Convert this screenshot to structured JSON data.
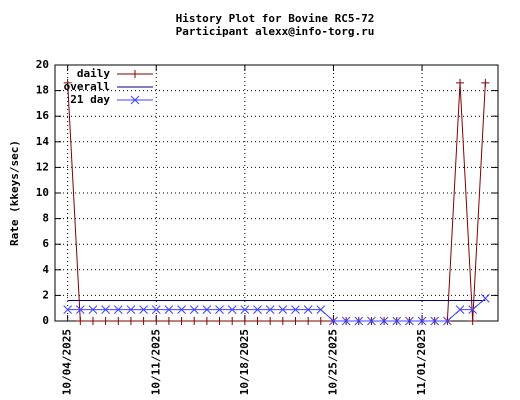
{
  "chart_data": {
    "type": "line",
    "title": "History Plot for Bovine RC5-72",
    "subtitle": "Participant alexx@info-torg.ru",
    "y_label": "Rate (kkeys/sec)",
    "x": [
      "10/04/2025",
      "10/05/2025",
      "10/06/2025",
      "10/07/2025",
      "10/08/2025",
      "10/09/2025",
      "10/10/2025",
      "10/11/2025",
      "10/12/2025",
      "10/13/2025",
      "10/14/2025",
      "10/15/2025",
      "10/16/2025",
      "10/17/2025",
      "10/18/2025",
      "10/19/2025",
      "10/20/2025",
      "10/21/2025",
      "10/22/2025",
      "10/23/2025",
      "10/24/2025",
      "10/25/2025",
      "10/26/2025",
      "10/27/2025",
      "10/28/2025",
      "10/29/2025",
      "10/30/2025",
      "10/31/2025",
      "11/01/2025",
      "11/02/2025",
      "11/03/2025",
      "11/04/2025",
      "11/05/2025",
      "11/06/2025"
    ],
    "series": [
      {
        "name": "daily",
        "color": "#800000",
        "marker": "plus",
        "values": [
          18.6,
          0,
          0,
          0,
          0,
          0,
          0,
          0,
          0,
          0,
          0,
          0,
          0,
          0,
          0,
          0,
          0,
          0,
          0,
          0,
          0,
          0,
          0,
          0,
          0,
          0,
          0,
          0,
          0,
          0,
          0,
          18.6,
          0,
          18.6
        ]
      },
      {
        "name": "overall",
        "color": "#000080",
        "marker": "none",
        "values": [
          1.6,
          1.6,
          1.6,
          1.6,
          1.6,
          1.6,
          1.6,
          1.6,
          1.6,
          1.6,
          1.6,
          1.6,
          1.6,
          1.6,
          1.6,
          1.6,
          1.6,
          1.6,
          1.6,
          1.6,
          1.6,
          1.6,
          1.6,
          1.6,
          1.6,
          1.6,
          1.6,
          1.6,
          1.6,
          1.6,
          1.6,
          1.6,
          1.6,
          1.6
        ]
      },
      {
        "name": "21 day",
        "color": "#4040ff",
        "marker": "cross",
        "values": [
          0.89,
          0.89,
          0.89,
          0.89,
          0.89,
          0.89,
          0.89,
          0.89,
          0.89,
          0.89,
          0.89,
          0.89,
          0.89,
          0.89,
          0.89,
          0.89,
          0.89,
          0.89,
          0.89,
          0.89,
          0.89,
          0,
          0,
          0,
          0,
          0,
          0,
          0,
          0,
          0,
          0,
          0.89,
          0.89,
          1.77
        ]
      }
    ],
    "xlim": [
      "10/03/2025",
      "11/07/2025"
    ],
    "xticks": [
      "10/04/2025",
      "10/11/2025",
      "10/18/2025",
      "10/25/2025",
      "11/01/2025"
    ],
    "ylim": [
      0,
      20
    ],
    "yticks": [
      0,
      2,
      4,
      6,
      8,
      10,
      12,
      14,
      16,
      18,
      20
    ],
    "grid": true,
    "legend": "top-left"
  }
}
